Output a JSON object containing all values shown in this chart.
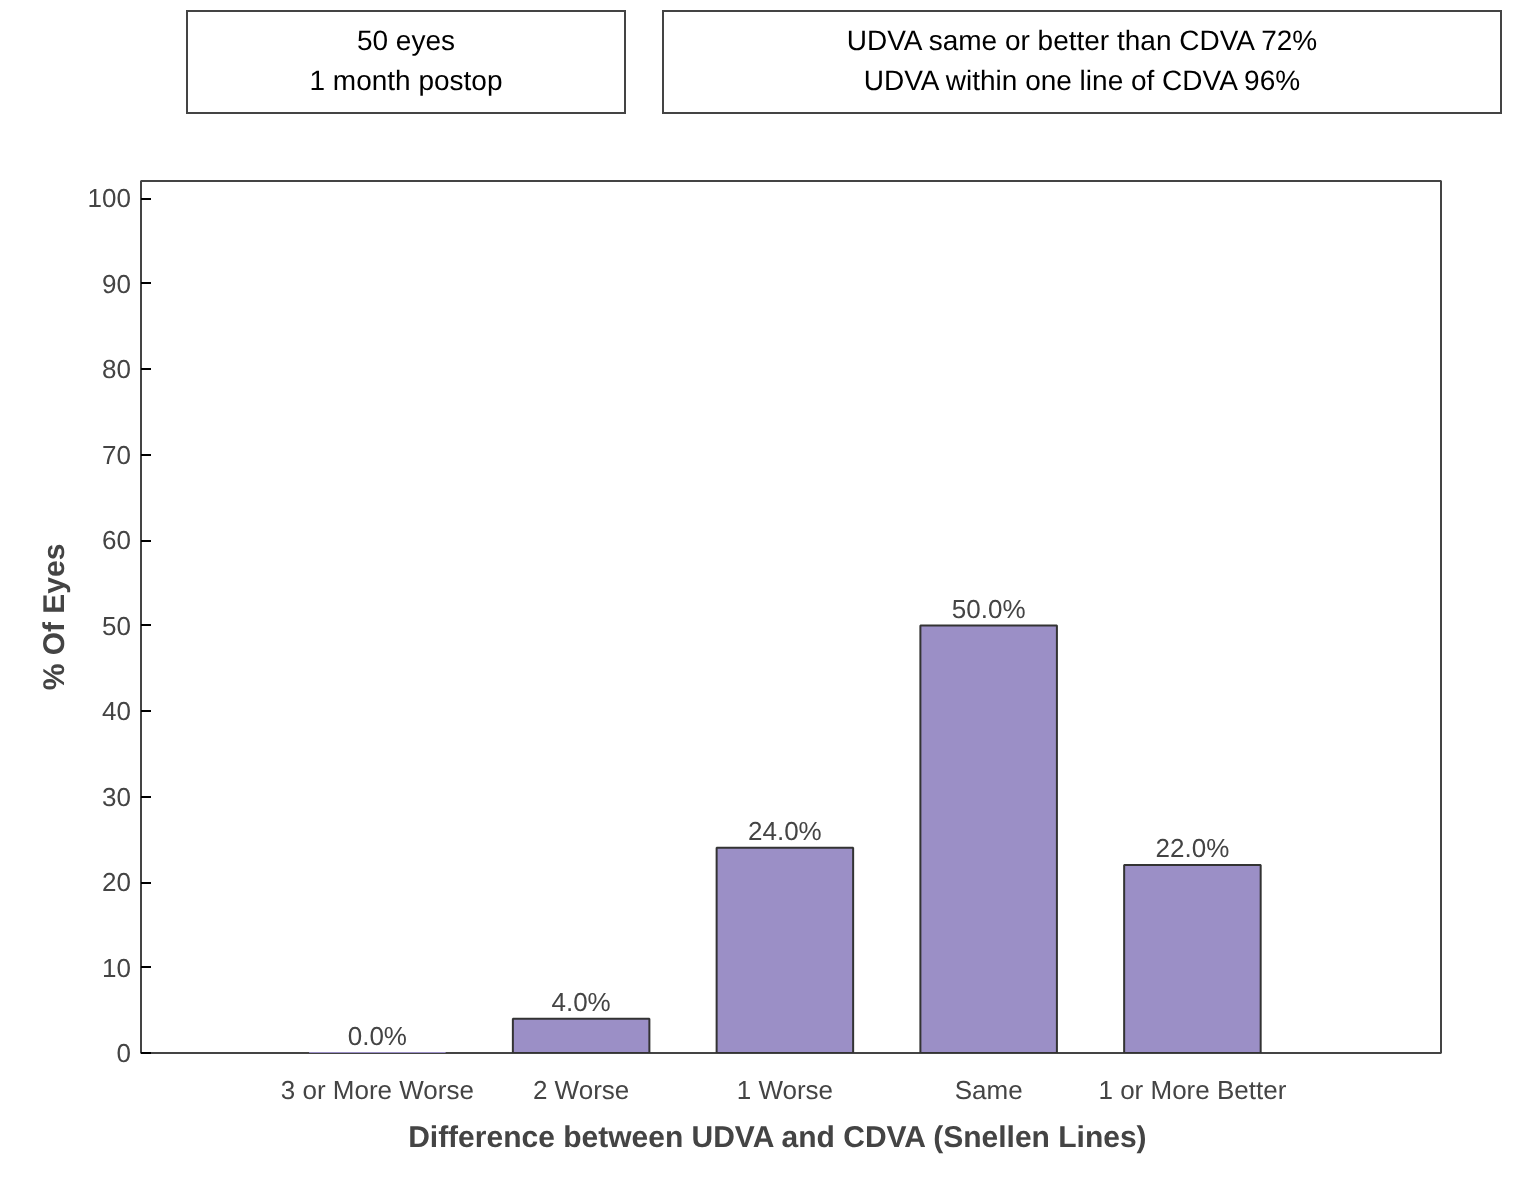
{
  "chart_data": {
    "type": "bar",
    "xlabel": "Difference between  UDVA  and  CDVA (Snellen Lines)",
    "ylabel": "% Of Eyes",
    "categories": [
      "3 or More Worse",
      "2 Worse",
      "1 Worse",
      "Same",
      "1 or More Better"
    ],
    "values": [
      0,
      4,
      24,
      50,
      22
    ],
    "value_labels": [
      "0.0%",
      "4.0%",
      "24.0%",
      "50.0%",
      "22.0%"
    ],
    "color": "#9b8fc6",
    "ylim": [
      0,
      102
    ],
    "yticks": [
      0,
      10,
      20,
      30,
      40,
      50,
      60,
      70,
      80,
      90,
      100
    ],
    "grid": false,
    "annotations": [
      "50 eyes\n1 month postop",
      "UDVA same or better than CDVA 72%\nUDVA within one line of CDVA 96%"
    ]
  }
}
